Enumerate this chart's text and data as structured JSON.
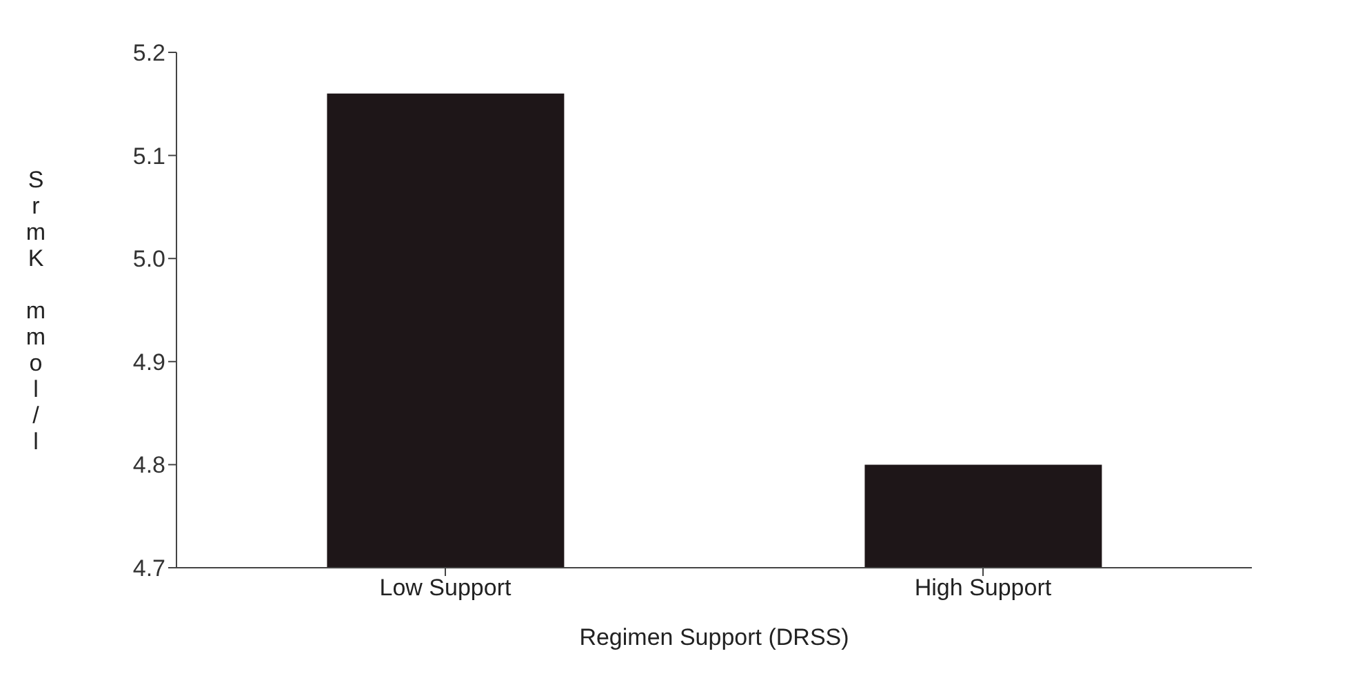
{
  "chart_data": {
    "type": "bar",
    "categories": [
      "Low Support",
      "High Support"
    ],
    "values": [
      5.16,
      4.8
    ],
    "color": "#1e1618",
    "xlabel": "Regimen Support (DRSS)",
    "ylabel": "SrmK mmol/l",
    "ylim": [
      4.7,
      5.2
    ],
    "yticks": [
      {
        "value": 4.7,
        "label": "4.7"
      },
      {
        "value": 4.8,
        "label": "4.8"
      },
      {
        "value": 4.9,
        "label": "4.9"
      },
      {
        "value": 5.0,
        "label": "5.0"
      },
      {
        "value": 5.1,
        "label": "5.1"
      },
      {
        "value": 5.2,
        "label": "5.2"
      }
    ],
    "grid": false,
    "legend": false
  }
}
